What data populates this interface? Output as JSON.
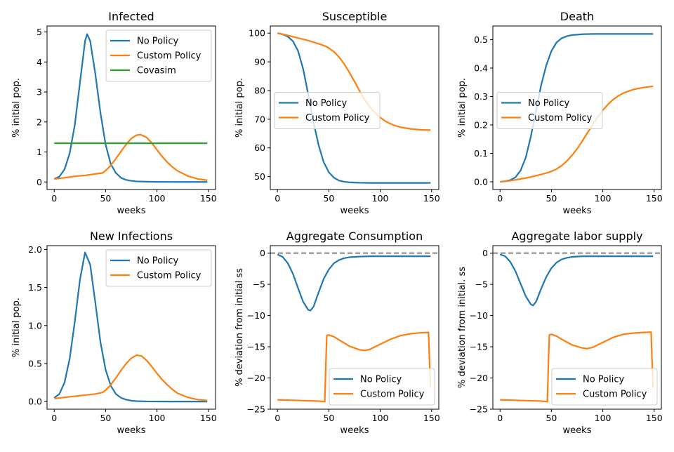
{
  "colors": {
    "no_policy": "#1f77b4",
    "custom_policy": "#ff7f0e",
    "covasim": "#2ca02c",
    "baseline": "#808080"
  },
  "chart_data": [
    {
      "type": "line",
      "title": "Infected",
      "xlabel": "weeks",
      "ylabel": "% initial pop.",
      "xlim": [
        -7,
        157
      ],
      "ylim": [
        -0.25,
        5.2
      ],
      "xticks": [
        0,
        50,
        100,
        150
      ],
      "yticks": [
        0,
        1,
        2,
        3,
        4,
        5
      ],
      "legend": "top-right",
      "series": [
        {
          "name": "No Policy",
          "color_key": "no_policy",
          "x": [
            0,
            5,
            10,
            15,
            20,
            25,
            30,
            32,
            35,
            40,
            45,
            50,
            55,
            60,
            65,
            70,
            75,
            80,
            90,
            100,
            110,
            120,
            130,
            140,
            149
          ],
          "y": [
            0.1,
            0.18,
            0.42,
            0.95,
            1.9,
            3.3,
            4.7,
            4.93,
            4.7,
            3.6,
            2.3,
            1.25,
            0.6,
            0.3,
            0.14,
            0.07,
            0.04,
            0.02,
            0.01,
            0.005,
            0.003,
            0.002,
            0.001,
            0.001,
            0.001
          ]
        },
        {
          "name": "Custom Policy",
          "color_key": "custom_policy",
          "x": [
            0,
            10,
            20,
            30,
            40,
            47,
            50,
            55,
            60,
            65,
            70,
            75,
            80,
            84,
            90,
            95,
            100,
            105,
            110,
            115,
            120,
            130,
            140,
            149
          ],
          "y": [
            0.1,
            0.14,
            0.19,
            0.22,
            0.27,
            0.3,
            0.38,
            0.55,
            0.78,
            1.02,
            1.25,
            1.45,
            1.56,
            1.58,
            1.48,
            1.3,
            1.07,
            0.85,
            0.66,
            0.5,
            0.37,
            0.2,
            0.1,
            0.06
          ]
        },
        {
          "name": "Covasim",
          "color_key": "covasim",
          "x": [
            0,
            149
          ],
          "y": [
            1.29,
            1.29
          ]
        }
      ]
    },
    {
      "type": "line",
      "title": "Susceptible",
      "xlabel": "weeks",
      "ylabel": "% initial pop.",
      "xlim": [
        -7,
        157
      ],
      "ylim": [
        45.5,
        102.5
      ],
      "xticks": [
        0,
        50,
        100,
        150
      ],
      "yticks": [
        50,
        60,
        70,
        80,
        90,
        100
      ],
      "legend": "center-left",
      "series": [
        {
          "name": "No Policy",
          "color_key": "no_policy",
          "x": [
            0,
            5,
            10,
            15,
            20,
            25,
            30,
            35,
            40,
            45,
            50,
            55,
            60,
            65,
            70,
            80,
            90,
            100,
            120,
            149
          ],
          "y": [
            100,
            99.6,
            98.8,
            97.2,
            93.8,
            87.5,
            78.5,
            69,
            61,
            55,
            51.5,
            49.6,
            48.6,
            48.2,
            48,
            47.85,
            47.8,
            47.8,
            47.8,
            47.8
          ]
        },
        {
          "name": "Custom Policy",
          "color_key": "custom_policy",
          "x": [
            0,
            10,
            20,
            30,
            40,
            47,
            50,
            55,
            60,
            65,
            70,
            75,
            80,
            85,
            90,
            95,
            100,
            105,
            110,
            115,
            120,
            130,
            140,
            149
          ],
          "y": [
            100,
            99.2,
            98.3,
            97.4,
            96.3,
            95.4,
            94.8,
            93.5,
            91.6,
            89.2,
            86.3,
            83.1,
            79.8,
            76.7,
            74.2,
            72.2,
            70.6,
            69.3,
            68.4,
            67.7,
            67.2,
            66.6,
            66.3,
            66.2
          ]
        }
      ]
    },
    {
      "type": "line",
      "title": "Death",
      "xlabel": "weeks",
      "ylabel": "% initial pop.",
      "xlim": [
        -7,
        157
      ],
      "ylim": [
        -0.027,
        0.548
      ],
      "xticks": [
        0,
        50,
        100,
        150
      ],
      "yticks": [
        0.0,
        0.1,
        0.2,
        0.3,
        0.4,
        0.5
      ],
      "legend": "center-left",
      "series": [
        {
          "name": "No Policy",
          "color_key": "no_policy",
          "x": [
            0,
            5,
            10,
            15,
            20,
            25,
            30,
            35,
            40,
            45,
            50,
            55,
            60,
            65,
            70,
            80,
            90,
            100,
            120,
            149
          ],
          "y": [
            0,
            0.002,
            0.006,
            0.016,
            0.04,
            0.085,
            0.16,
            0.25,
            0.34,
            0.41,
            0.46,
            0.49,
            0.505,
            0.512,
            0.516,
            0.519,
            0.52,
            0.52,
            0.52,
            0.52
          ]
        },
        {
          "name": "Custom Policy",
          "color_key": "custom_policy",
          "x": [
            0,
            10,
            20,
            30,
            40,
            47,
            50,
            55,
            60,
            65,
            70,
            75,
            80,
            85,
            90,
            95,
            100,
            105,
            110,
            115,
            120,
            130,
            140,
            149
          ],
          "y": [
            0,
            0.004,
            0.01,
            0.017,
            0.026,
            0.033,
            0.037,
            0.045,
            0.057,
            0.073,
            0.093,
            0.116,
            0.143,
            0.172,
            0.2,
            0.228,
            0.252,
            0.272,
            0.289,
            0.302,
            0.312,
            0.325,
            0.332,
            0.336
          ]
        }
      ]
    },
    {
      "type": "line",
      "title": "New Infections",
      "xlabel": "weeks",
      "ylabel": "% initial pop.",
      "xlim": [
        -7,
        157
      ],
      "ylim": [
        -0.1,
        2.05
      ],
      "xticks": [
        0,
        50,
        100,
        150
      ],
      "yticks": [
        0.0,
        0.5,
        1.0,
        1.5,
        2.0
      ],
      "legend": "top-right",
      "series": [
        {
          "name": "No Policy",
          "color_key": "no_policy",
          "x": [
            0,
            5,
            10,
            15,
            20,
            25,
            30,
            35,
            40,
            45,
            50,
            55,
            60,
            65,
            70,
            75,
            80,
            90,
            100,
            120,
            149
          ],
          "y": [
            0.05,
            0.1,
            0.25,
            0.56,
            1.05,
            1.6,
            1.96,
            1.8,
            1.3,
            0.78,
            0.42,
            0.21,
            0.1,
            0.05,
            0.025,
            0.012,
            0.006,
            0.002,
            0.001,
            0,
            0
          ]
        },
        {
          "name": "Custom Policy",
          "color_key": "custom_policy",
          "x": [
            0,
            10,
            20,
            30,
            40,
            47,
            50,
            55,
            60,
            65,
            70,
            75,
            80,
            85,
            90,
            95,
            100,
            105,
            110,
            115,
            120,
            130,
            140,
            149
          ],
          "y": [
            0.04,
            0.055,
            0.07,
            0.085,
            0.1,
            0.12,
            0.15,
            0.22,
            0.31,
            0.41,
            0.5,
            0.57,
            0.61,
            0.6,
            0.54,
            0.46,
            0.37,
            0.29,
            0.22,
            0.16,
            0.11,
            0.055,
            0.025,
            0.015
          ]
        }
      ]
    },
    {
      "type": "line",
      "title": "Aggregate Consumption",
      "xlabel": "weeks",
      "ylabel": "% deviation from initial ss",
      "xlim": [
        -7,
        157
      ],
      "ylim": [
        -25,
        1.2
      ],
      "xticks": [
        0,
        50,
        100,
        150
      ],
      "yticks": [
        0,
        -5,
        -10,
        -15,
        -20,
        -25
      ],
      "legend": "bottom-right",
      "baseline": 0,
      "series": [
        {
          "name": "No Policy",
          "color_key": "no_policy",
          "x": [
            0,
            5,
            10,
            15,
            20,
            25,
            30,
            32,
            35,
            40,
            45,
            50,
            55,
            60,
            65,
            70,
            80,
            90,
            100,
            149
          ],
          "y": [
            -0.2,
            -0.6,
            -1.6,
            -3.3,
            -5.6,
            -7.8,
            -9.1,
            -9.2,
            -8.6,
            -6.3,
            -4.1,
            -2.6,
            -1.6,
            -1.1,
            -0.8,
            -0.65,
            -0.55,
            -0.5,
            -0.5,
            -0.5
          ]
        },
        {
          "name": "Custom Policy",
          "color_key": "custom_policy",
          "x": [
            0,
            20,
            40,
            46,
            47,
            48,
            50,
            55,
            60,
            70,
            80,
            85,
            90,
            100,
            110,
            120,
            130,
            140,
            147,
            148,
            149
          ],
          "y": [
            -23.5,
            -23.6,
            -23.7,
            -23.8,
            -18.0,
            -13.2,
            -13.1,
            -13.4,
            -13.9,
            -14.9,
            -15.5,
            -15.6,
            -15.4,
            -14.6,
            -13.8,
            -13.2,
            -12.9,
            -12.75,
            -12.7,
            -17.5,
            -21.5
          ]
        }
      ]
    },
    {
      "type": "line",
      "title": "Aggregate labor supply",
      "xlabel": "weeks",
      "ylabel": "% deviation from initial. ss",
      "xlim": [
        -7,
        157
      ],
      "ylim": [
        -25,
        1.2
      ],
      "xticks": [
        0,
        50,
        100,
        150
      ],
      "yticks": [
        0,
        -5,
        -10,
        -15,
        -20,
        -25
      ],
      "legend": "bottom-right",
      "baseline": 0,
      "series": [
        {
          "name": "No Policy",
          "color_key": "no_policy",
          "x": [
            0,
            5,
            10,
            15,
            20,
            25,
            30,
            32,
            35,
            40,
            45,
            50,
            55,
            60,
            65,
            70,
            80,
            90,
            100,
            149
          ],
          "y": [
            -0.2,
            -0.5,
            -1.4,
            -2.9,
            -4.9,
            -6.9,
            -8.2,
            -8.4,
            -7.8,
            -5.7,
            -3.8,
            -2.4,
            -1.5,
            -1.0,
            -0.75,
            -0.6,
            -0.5,
            -0.5,
            -0.5,
            -0.5
          ]
        },
        {
          "name": "Custom Policy",
          "color_key": "custom_policy",
          "x": [
            0,
            20,
            40,
            46,
            47,
            48,
            50,
            55,
            60,
            70,
            80,
            85,
            90,
            100,
            110,
            120,
            130,
            140,
            147,
            148,
            149
          ],
          "y": [
            -23.5,
            -23.6,
            -23.7,
            -23.8,
            -18.0,
            -13.1,
            -13.0,
            -13.3,
            -13.8,
            -14.7,
            -15.2,
            -15.3,
            -15.1,
            -14.3,
            -13.5,
            -13.0,
            -12.8,
            -12.7,
            -12.65,
            -17.5,
            -21.5
          ]
        }
      ]
    }
  ]
}
